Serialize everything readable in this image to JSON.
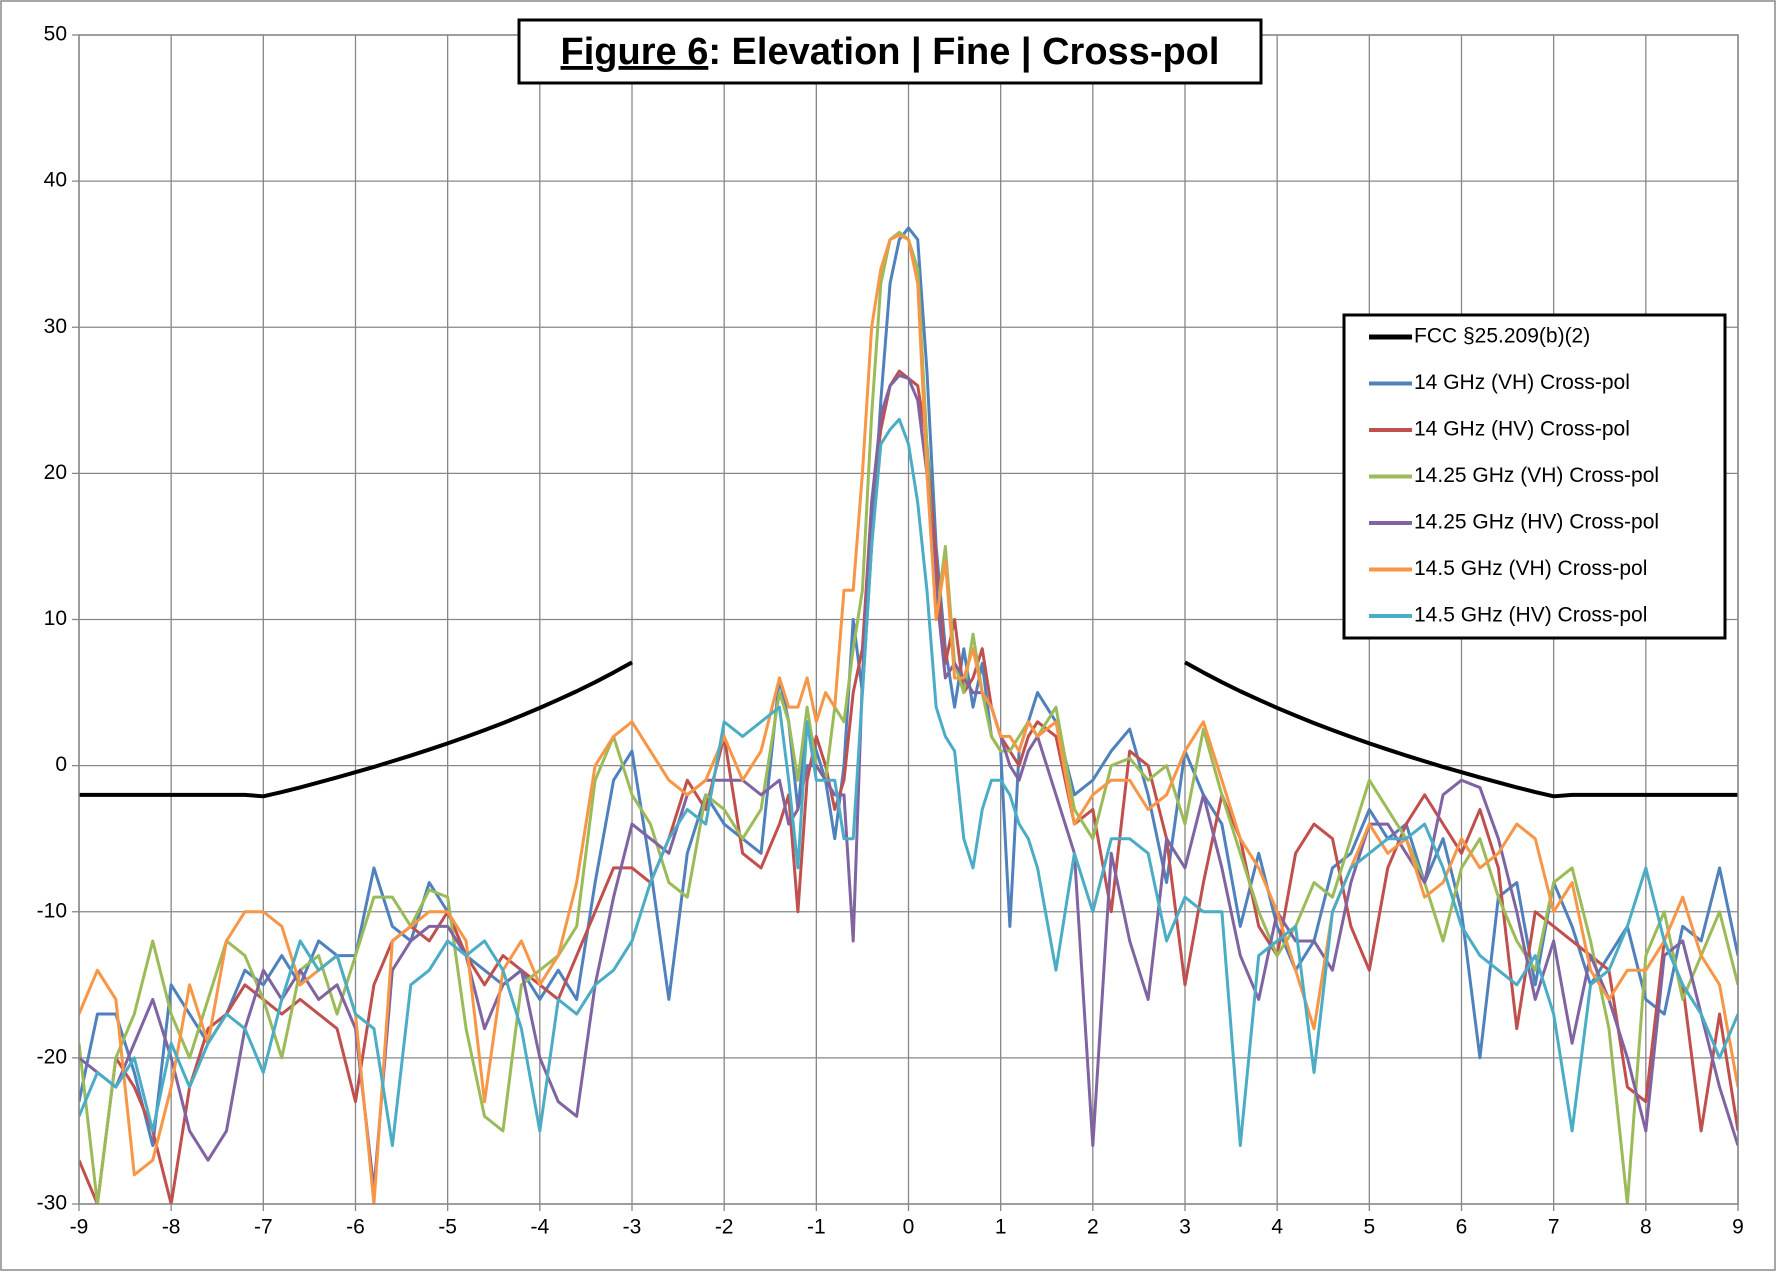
{
  "chart_data": {
    "type": "line",
    "title": [
      "Figure 6",
      ": Elevation | Fine | Cross-pol"
    ],
    "x": [
      -9,
      -8.8,
      -8.6,
      -8.4,
      -8.2,
      -8,
      -7.8,
      -7.6,
      -7.4,
      -7.2,
      -7,
      -6.8,
      -6.6,
      -6.4,
      -6.2,
      -6,
      -5.8,
      -5.6,
      -5.4,
      -5.2,
      -5,
      -4.8,
      -4.6,
      -4.4,
      -4.2,
      -4,
      -3.8,
      -3.6,
      -3.4,
      -3.2,
      -3,
      -2.8,
      -2.6,
      -2.4,
      -2.2,
      -2,
      -1.8,
      -1.6,
      -1.4,
      -1.3,
      -1.2,
      -1.1,
      -1,
      -0.9,
      -0.8,
      -0.7,
      -0.6,
      -0.5,
      -0.4,
      -0.3,
      -0.2,
      -0.1,
      0,
      0.1,
      0.2,
      0.3,
      0.4,
      0.5,
      0.6,
      0.7,
      0.8,
      0.9,
      1,
      1.1,
      1.2,
      1.3,
      1.4,
      1.6,
      1.8,
      2,
      2.2,
      2.4,
      2.6,
      2.8,
      3,
      3.2,
      3.4,
      3.6,
      3.8,
      4,
      4.2,
      4.4,
      4.6,
      4.8,
      5,
      5.2,
      5.4,
      5.6,
      5.8,
      6,
      6.2,
      6.4,
      6.6,
      6.8,
      7,
      7.2,
      7.4,
      7.6,
      7.8,
      8,
      8.2,
      8.4,
      8.6,
      8.8,
      9
    ],
    "series": [
      {
        "name": "FCC §25.209(b)(2)",
        "color": "#000000",
        "width": 4,
        "values": [
          -2,
          -2,
          -2,
          -2,
          -2,
          -2,
          -2,
          -2,
          -2,
          -2,
          -2.1,
          -1.81,
          -1.49,
          -1.15,
          -0.81,
          -0.45,
          -0.09,
          0.3,
          0.69,
          1.1,
          1.52,
          1.97,
          2.43,
          2.91,
          3.42,
          3.95,
          4.51,
          5.09,
          5.71,
          6.37,
          7.07,
          null,
          null,
          null,
          null,
          null,
          null,
          null,
          null,
          null,
          null,
          null,
          null,
          null,
          null,
          null,
          null,
          null,
          null,
          null,
          null,
          null,
          null,
          null,
          null,
          null,
          null,
          null,
          null,
          null,
          null,
          null,
          null,
          null,
          null,
          null,
          null,
          null,
          null,
          null,
          null,
          null,
          null,
          null,
          7.07,
          6.37,
          5.71,
          5.09,
          4.51,
          3.95,
          3.42,
          2.91,
          2.43,
          1.97,
          1.52,
          1.1,
          0.69,
          0.3,
          -0.09,
          -0.45,
          -0.81,
          -1.15,
          -1.49,
          -1.81,
          -2.1,
          -2,
          -2,
          -2,
          -2,
          -2,
          -2,
          -2,
          -2,
          -2,
          -2
        ]
      },
      {
        "name": "14 GHz (VH) Cross-pol",
        "color": "#4f81bd",
        "width": 3,
        "values": [
          -23,
          -17,
          -17,
          -21,
          -26,
          -15,
          -17,
          -19,
          -17,
          -14,
          -15,
          -13,
          -15,
          -12,
          -13,
          -13,
          -7,
          -11,
          -12,
          -8,
          -10,
          -13,
          -14,
          -15,
          -14,
          -16,
          -14,
          -16,
          -8,
          -1,
          1,
          -7,
          -16,
          -6,
          -2,
          -4,
          -5,
          -6,
          6,
          3,
          -3,
          3,
          1,
          -1,
          -5,
          0,
          10,
          5,
          15,
          25,
          33,
          36,
          36.8,
          36,
          27,
          15,
          8,
          4,
          8,
          4,
          7,
          2,
          1,
          -11,
          1,
          3,
          5,
          3,
          -2,
          -1,
          1,
          2.5,
          -2,
          -8,
          1,
          -2,
          -4,
          -11,
          -6,
          -11,
          -14,
          -12,
          -7,
          -6,
          -3,
          -5,
          -4,
          -8,
          -5,
          -10,
          -20,
          -9,
          -8,
          -15,
          -8,
          -11,
          -15,
          -13,
          -11,
          -16,
          -17,
          -11,
          -12,
          -7,
          -13
        ]
      },
      {
        "name": "14 GHz (HV) Cross-pol",
        "color": "#c0504d",
        "width": 3,
        "values": [
          -27,
          -30,
          -20,
          -22,
          -25,
          -30,
          -22,
          -18,
          -17,
          -15,
          -16,
          -17,
          -16,
          -17,
          -18,
          -23,
          -15,
          -12,
          -11,
          -12,
          -10,
          -13,
          -15,
          -13,
          -14,
          -15,
          -16,
          -13,
          -10,
          -7,
          -7,
          -8,
          -5,
          -1,
          -3,
          2,
          -6,
          -7,
          -4,
          -2,
          -10,
          -1,
          2,
          0,
          -3,
          -1,
          5,
          8,
          18,
          23,
          26,
          27,
          26.5,
          26,
          22,
          14,
          7,
          10,
          5,
          6,
          8,
          4,
          2,
          1,
          0,
          2,
          3,
          2,
          -4,
          -3,
          -10,
          1,
          0,
          -5,
          -15,
          -8,
          -2,
          -5,
          -11,
          -13,
          -6,
          -4,
          -5,
          -11,
          -14,
          -7,
          -4,
          -2,
          -4,
          -6,
          -3,
          -7,
          -18,
          -10,
          -11,
          -12,
          -13,
          -14,
          -22,
          -23,
          -12,
          -15,
          -25,
          -17,
          -25
        ]
      },
      {
        "name": "14.25 GHz (VH) Cross-pol",
        "color": "#9bbb59",
        "width": 3,
        "values": [
          -19,
          -30,
          -20,
          -17,
          -12,
          -17,
          -20,
          -16,
          -12,
          -13,
          -16,
          -20,
          -14,
          -13,
          -17,
          -13,
          -9,
          -9,
          -11,
          -8.5,
          -9,
          -18,
          -24,
          -25,
          -15,
          -14,
          -13,
          -11,
          -1,
          2,
          -2,
          -4,
          -8,
          -9,
          -2,
          -3,
          -5,
          -3,
          5,
          3,
          -1,
          4,
          0,
          -1,
          4,
          3,
          8,
          12,
          24,
          33,
          36,
          36.5,
          36,
          34,
          22,
          10,
          15,
          7,
          5,
          9,
          5,
          2,
          1,
          1,
          2,
          3,
          2,
          4,
          -3,
          -5,
          0,
          0.5,
          -1,
          0,
          -4,
          2.5,
          -2,
          -6,
          -10,
          -13,
          -11,
          -8,
          -9,
          -5,
          -1,
          -3,
          -5,
          -8,
          -12,
          -7,
          -5,
          -9,
          -12,
          -14,
          -8,
          -7,
          -12,
          -18,
          -30,
          -13,
          -10,
          -16,
          -13,
          -10,
          -15
        ]
      },
      {
        "name": "14.25 GHz (HV) Cross-pol",
        "color": "#8064a2",
        "width": 3,
        "values": [
          -20,
          -21,
          -22,
          -19,
          -16,
          -20,
          -25,
          -27,
          -25,
          -18,
          -14,
          -16,
          -14,
          -16,
          -15,
          -18,
          -29,
          -14,
          -12,
          -11,
          -11,
          -13,
          -18,
          -15,
          -14,
          -20,
          -23,
          -24,
          -15,
          -9,
          -4,
          -5,
          -6,
          -2,
          -1,
          -1,
          -1,
          -2,
          -1,
          -4,
          -3,
          0,
          0,
          -1,
          -2,
          -2,
          -12,
          6,
          18,
          24,
          26,
          26.7,
          26.5,
          25,
          20,
          12,
          6,
          7,
          6,
          5,
          5,
          4,
          2,
          0,
          -1,
          1,
          2,
          -2,
          -6,
          -26,
          -6,
          -12,
          -16,
          -5,
          -7,
          -2,
          -7,
          -13,
          -16,
          -10,
          -12,
          -12,
          -14,
          -8,
          -4,
          -4,
          -6,
          -8,
          -2,
          -1,
          -1.5,
          -5,
          -10,
          -16,
          -12,
          -19,
          -13,
          -16,
          -20,
          -25,
          -13,
          -12,
          -17,
          -22,
          -26
        ]
      },
      {
        "name": "14.5 GHz (VH) Cross-pol",
        "color": "#f79646",
        "width": 3,
        "values": [
          -17,
          -14,
          -16,
          -28,
          -27,
          -22,
          -15,
          -19,
          -12,
          -10,
          -10,
          -11,
          -15,
          -14,
          -13,
          -17,
          -30,
          -12,
          -11,
          -10,
          -10,
          -12,
          -23,
          -14,
          -12,
          -15,
          -13,
          -8,
          0,
          2,
          3,
          1,
          -1,
          -2,
          -1,
          2,
          -1,
          1,
          6,
          4,
          4,
          6,
          3,
          5,
          4,
          12,
          12,
          20,
          30,
          34,
          36,
          36.3,
          36,
          33,
          20,
          10,
          14,
          6,
          6,
          8,
          5,
          4,
          2,
          2,
          1,
          3,
          2,
          3,
          -4,
          -2,
          -1,
          -1,
          -3,
          -2,
          1,
          3,
          -1,
          -5,
          -7,
          -10,
          -14,
          -18,
          -10,
          -7,
          -4,
          -6,
          -5,
          -9,
          -8,
          -5,
          -7,
          -6,
          -4,
          -5,
          -10,
          -8,
          -14,
          -16,
          -14,
          -14,
          -12,
          -9,
          -13,
          -15,
          -22
        ]
      },
      {
        "name": "14.5 GHz (HV) Cross-pol",
        "color": "#4bacc6",
        "width": 3,
        "values": [
          -24,
          -21,
          -22,
          -20,
          -25,
          -19,
          -22,
          -19,
          -17,
          -18,
          -21,
          -16,
          -12,
          -14,
          -13,
          -17,
          -18,
          -26,
          -15,
          -14,
          -12,
          -13,
          -12,
          -14,
          -18,
          -25,
          -16,
          -17,
          -15,
          -14,
          -12,
          -8,
          -5,
          -3,
          -4,
          3,
          2,
          3,
          4,
          -1,
          -7,
          3,
          -1,
          -1,
          -1,
          -5,
          -5,
          5,
          15,
          22,
          23,
          23.7,
          22,
          18,
          12,
          4,
          2,
          1,
          -5,
          -7,
          -3,
          -1,
          -1,
          -2,
          -4,
          -5,
          -7,
          -14,
          -6,
          -10,
          -5,
          -5,
          -6,
          -12,
          -9,
          -10,
          -10,
          -26,
          -13,
          -12,
          -11,
          -21,
          -10,
          -7,
          -6,
          -5,
          -5,
          -4,
          -7,
          -11,
          -13,
          -14,
          -15,
          -13,
          -17,
          -25,
          -15,
          -14,
          -11,
          -7,
          -12,
          -15,
          -17,
          -20,
          -17
        ]
      }
    ],
    "xlim": [
      -9,
      9
    ],
    "xticks": [
      -9,
      -8,
      -7,
      -6,
      -5,
      -4,
      -3,
      -2,
      -1,
      0,
      1,
      2,
      3,
      4,
      5,
      6,
      7,
      8,
      9
    ],
    "ylim": [
      -30,
      50
    ],
    "yticks": [
      -30,
      -20,
      -10,
      0,
      10,
      20,
      30,
      40,
      50
    ],
    "grid": true,
    "legend": "upper right"
  }
}
